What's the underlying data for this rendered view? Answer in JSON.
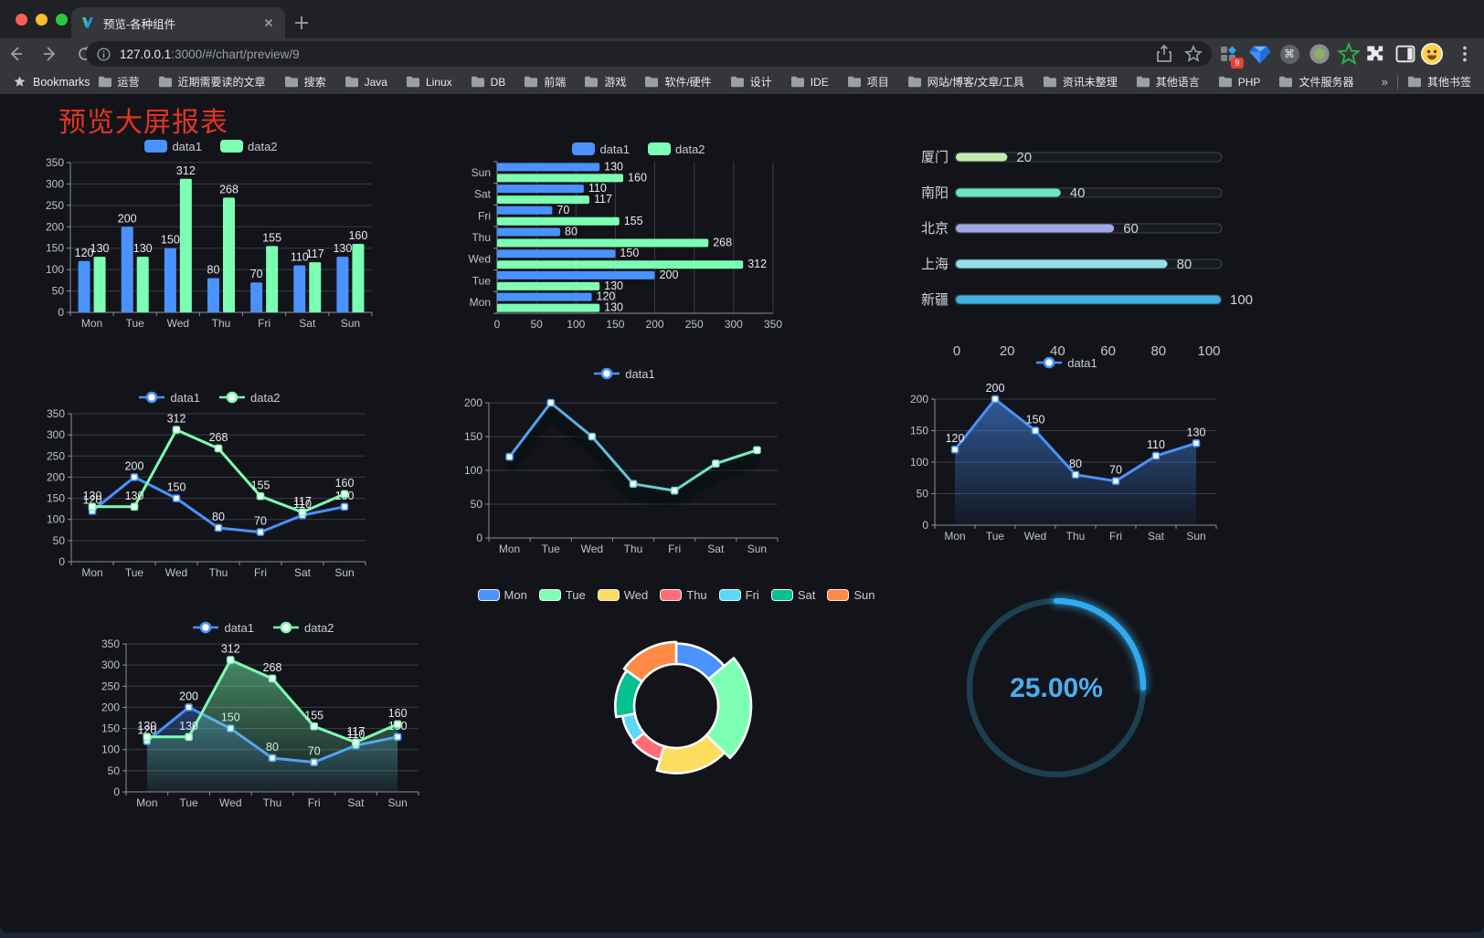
{
  "browser": {
    "tab_title": "预览-各种组件",
    "url_host": "127.0.0.1",
    "url_rest": ":3000/#/chart/preview/9",
    "bookmarks_label": "Bookmarks",
    "bookmarks": [
      "运营",
      "近期需要读的文章",
      "搜索",
      "Java",
      "Linux",
      "DB",
      "前端",
      "游戏",
      "软件/硬件",
      "设计",
      "IDE",
      "项目",
      "网站/博客/文章/工具",
      "资讯未整理",
      "其他语言",
      "PHP",
      "文件服务器"
    ],
    "bookmarks_overflow": "»",
    "other_bookmarks": "其他书签",
    "extension_badge": "9",
    "cmd_glyph": "⌘"
  },
  "page": {
    "title": "预览大屏报表"
  },
  "colors": {
    "data1_blue": "#4992ff",
    "data2_green": "#7cffb2",
    "title_red": "#e33422",
    "gauge_blue": "#2fabec"
  },
  "chart_data": [
    {
      "id": "bar-vertical",
      "type": "bar",
      "categories": [
        "Mon",
        "Tue",
        "Wed",
        "Thu",
        "Fri",
        "Sat",
        "Sun"
      ],
      "series": [
        {
          "name": "data1",
          "color": "#4992ff",
          "values": [
            120,
            200,
            150,
            80,
            70,
            110,
            130
          ]
        },
        {
          "name": "data2",
          "color": "#7cffb2",
          "values": [
            130,
            130,
            312,
            268,
            155,
            117,
            160
          ]
        }
      ],
      "ylim": [
        0,
        350
      ],
      "ytick": 50,
      "show_labels": true,
      "grid": true,
      "legend_position": "top"
    },
    {
      "id": "bar-horizontal",
      "type": "hbar",
      "categories": [
        "Mon",
        "Tue",
        "Wed",
        "Thu",
        "Fri",
        "Sat",
        "Sun"
      ],
      "category_order_top_to_bottom": [
        "Sun",
        "Sat",
        "Fri",
        "Thu",
        "Wed",
        "Tue",
        "Mon"
      ],
      "series": [
        {
          "name": "data1",
          "color": "#4992ff",
          "values": [
            120,
            200,
            150,
            80,
            70,
            110,
            130
          ]
        },
        {
          "name": "data2",
          "color": "#7cffb2",
          "values": [
            130,
            130,
            312,
            268,
            155,
            117,
            160
          ]
        }
      ],
      "xlim": [
        0,
        350
      ],
      "xtick": 50,
      "show_labels": true,
      "grid": true,
      "legend_position": "top"
    },
    {
      "id": "progress-bars",
      "type": "progress",
      "max": 100,
      "axis_ticks": [
        0,
        20,
        40,
        60,
        80,
        100
      ],
      "items": [
        {
          "label": "厦门",
          "value": 20,
          "color": "#c4ebad"
        },
        {
          "label": "南阳",
          "value": 40,
          "color": "#6be6c1"
        },
        {
          "label": "北京",
          "value": 60,
          "color": "#a0a7e6"
        },
        {
          "label": "上海",
          "value": 80,
          "color": "#96dee8"
        },
        {
          "label": "新疆",
          "value": 100,
          "color": "#3fb1e3"
        }
      ]
    },
    {
      "id": "line-two-series",
      "type": "line",
      "categories": [
        "Mon",
        "Tue",
        "Wed",
        "Thu",
        "Fri",
        "Sat",
        "Sun"
      ],
      "series": [
        {
          "name": "data1",
          "color": "#4992ff",
          "values": [
            120,
            200,
            150,
            80,
            70,
            110,
            130
          ]
        },
        {
          "name": "data2",
          "color": "#7cffb2",
          "values": [
            130,
            130,
            312,
            268,
            155,
            117,
            160
          ]
        }
      ],
      "ylim": [
        0,
        350
      ],
      "ytick": 50,
      "show_labels": true,
      "grid": true,
      "legend_position": "top"
    },
    {
      "id": "line-gradient",
      "type": "line",
      "categories": [
        "Mon",
        "Tue",
        "Wed",
        "Thu",
        "Fri",
        "Sat",
        "Sun"
      ],
      "series": [
        {
          "name": "data1",
          "color": "#4992ff",
          "color_end": "#7cffb2",
          "values": [
            120,
            200,
            150,
            80,
            70,
            110,
            130
          ]
        }
      ],
      "ylim": [
        0,
        200
      ],
      "ytick": 50,
      "show_labels": false,
      "shadow": true,
      "grid": true,
      "legend_position": "top"
    },
    {
      "id": "area-single",
      "type": "area",
      "categories": [
        "Mon",
        "Tue",
        "Wed",
        "Thu",
        "Fri",
        "Sat",
        "Sun"
      ],
      "series": [
        {
          "name": "data1",
          "color": "#4992ff",
          "values": [
            120,
            200,
            150,
            80,
            70,
            110,
            130
          ]
        }
      ],
      "ylim": [
        0,
        200
      ],
      "ytick": 50,
      "show_labels": true,
      "grid": true,
      "legend_position": "top"
    },
    {
      "id": "area-two-series",
      "type": "area",
      "categories": [
        "Mon",
        "Tue",
        "Wed",
        "Thu",
        "Fri",
        "Sat",
        "Sun"
      ],
      "series": [
        {
          "name": "data1",
          "color": "#4992ff",
          "values": [
            120,
            200,
            150,
            80,
            70,
            110,
            130
          ]
        },
        {
          "name": "data2",
          "color": "#7cffb2",
          "values": [
            130,
            130,
            312,
            268,
            155,
            117,
            160
          ]
        }
      ],
      "ylim": [
        0,
        350
      ],
      "ytick": 50,
      "show_labels": true,
      "grid": true,
      "legend_position": "top"
    },
    {
      "id": "rose-donut",
      "type": "pie",
      "rose": true,
      "categories": [
        "Mon",
        "Tue",
        "Wed",
        "Thu",
        "Fri",
        "Sat",
        "Sun"
      ],
      "values": [
        120,
        200,
        150,
        80,
        70,
        110,
        130
      ],
      "colors": [
        "#4992ff",
        "#7cffb2",
        "#fddd60",
        "#ff6e76",
        "#58d9f9",
        "#05c091",
        "#ff8a45"
      ],
      "legend_position": "top"
    },
    {
      "id": "gauge",
      "type": "gauge",
      "value": 25,
      "display": "25.00%",
      "color": "#2fabec",
      "track_color": "#1d4051",
      "text_color": "#4aaff0"
    }
  ]
}
